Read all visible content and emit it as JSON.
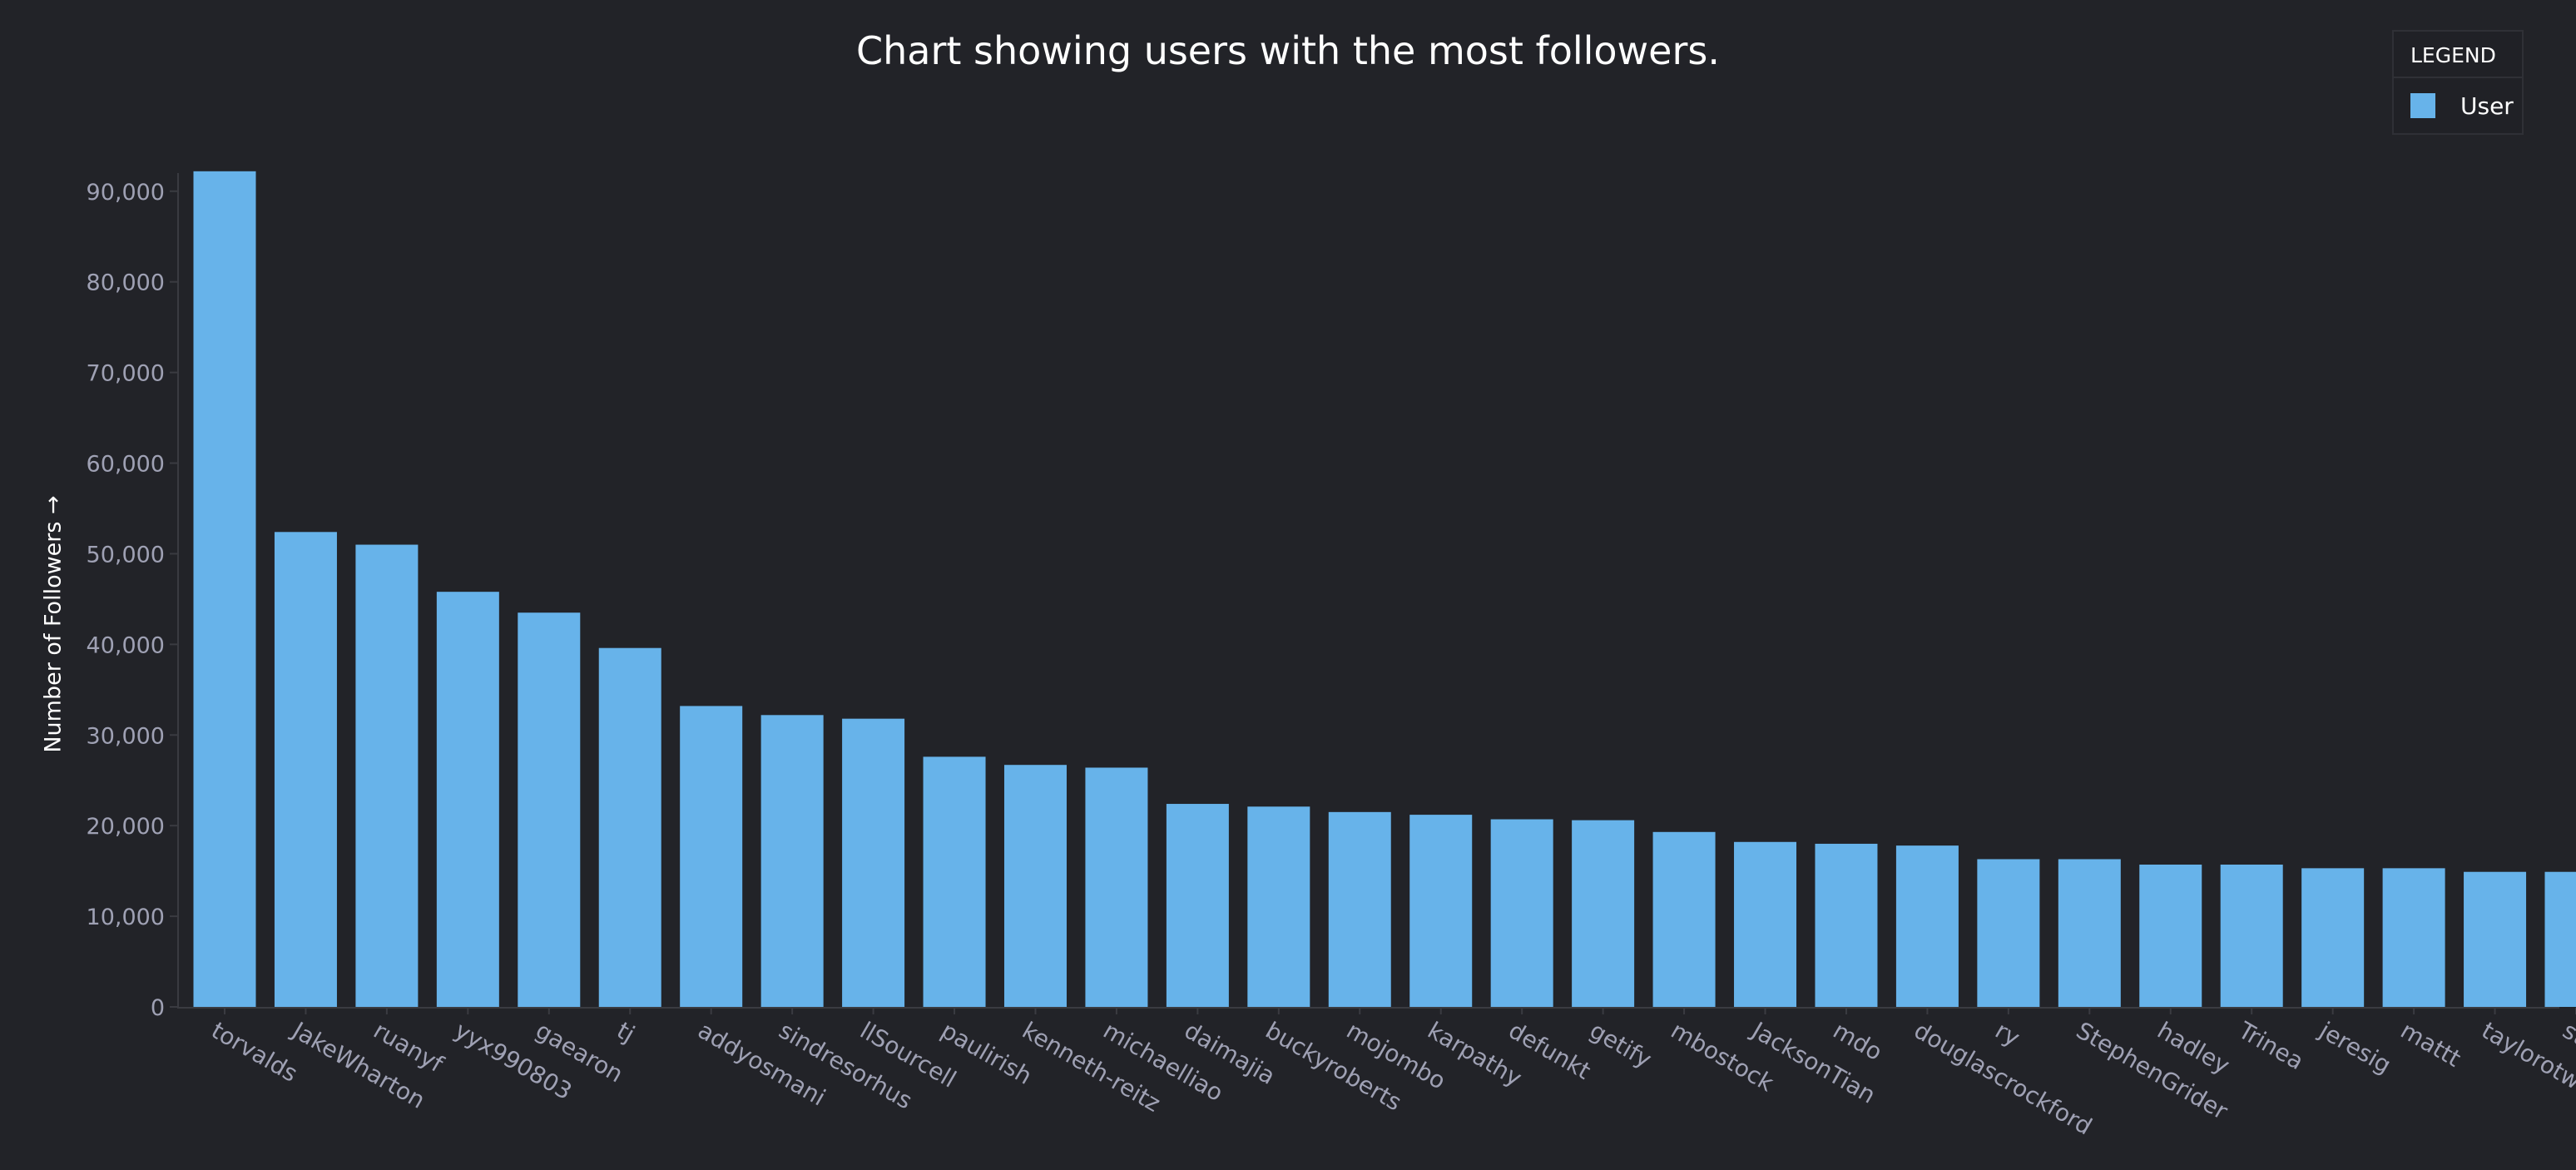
{
  "title": "Chart showing users with the most followers.",
  "legend": {
    "title": "LEGEND",
    "series_label": "User",
    "position": "top-right"
  },
  "colors": {
    "background": "#222328",
    "bar": "#67b3ea",
    "axis_text": "#9fa1b4",
    "axis_line": "#3a3b41"
  },
  "chart_data": {
    "type": "bar",
    "title": "Chart showing users with the most followers.",
    "xlabel": "",
    "ylabel": "Number of Followers →",
    "ylim": [
      0,
      92000
    ],
    "yticks": [
      0,
      10000,
      20000,
      30000,
      40000,
      50000,
      60000,
      70000,
      80000,
      90000
    ],
    "ytick_labels": [
      "0",
      "10,000",
      "20,000",
      "30,000",
      "40,000",
      "50,000",
      "60,000",
      "70,000",
      "80,000",
      "90,000"
    ],
    "grid": false,
    "categories": [
      "torvalds",
      "JakeWharton",
      "ruanyf",
      "yyx990803",
      "gaearon",
      "tj",
      "addyosmani",
      "sindresorhus",
      "llSourcell",
      "paulirish",
      "kenneth-reitz",
      "michaelliao",
      "daimajia",
      "buckyroberts",
      "mojombo",
      "karpathy",
      "defunkt",
      "getify",
      "mbostock",
      "JacksonTian",
      "mdo",
      "douglascrockford",
      "ry",
      "StephenGrider",
      "hadley",
      "Trinea",
      "jeresig",
      "mattt",
      "taylorotwell",
      "stormz"
    ],
    "series": [
      {
        "name": "User",
        "values": [
          92200,
          52400,
          51000,
          45800,
          43500,
          39600,
          33200,
          32200,
          31800,
          27600,
          26700,
          26400,
          22400,
          22100,
          21500,
          21200,
          20700,
          20600,
          19300,
          18200,
          18000,
          17800,
          16300,
          16300,
          15700,
          15700,
          15300,
          15300,
          14900,
          14900
        ]
      }
    ]
  }
}
